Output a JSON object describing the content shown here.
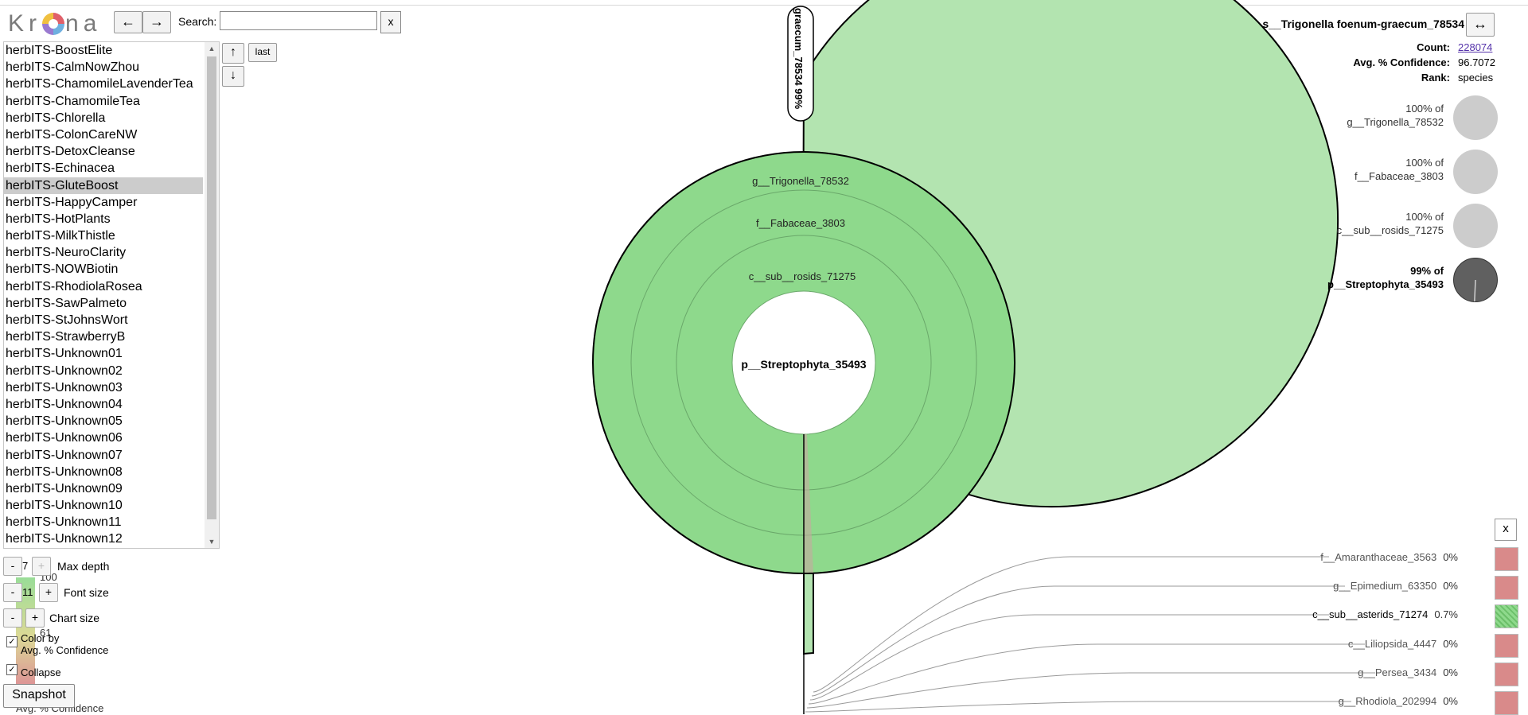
{
  "app": {
    "logo_letters": [
      "K",
      "r",
      "n",
      "a"
    ],
    "nav": {
      "back_label": "←",
      "forward_label": "→"
    },
    "search": {
      "label": "Search:",
      "value": "",
      "clear_label": "x"
    }
  },
  "datasets": {
    "items": [
      "herbITS-BoostElite",
      "herbITS-CalmNowZhou",
      "herbITS-ChamomileLavenderTea",
      "herbITS-ChamomileTea",
      "herbITS-Chlorella",
      "herbITS-ColonCareNW",
      "herbITS-DetoxCleanse",
      "herbITS-Echinacea",
      "herbITS-GluteBoost",
      "herbITS-HappyCamper",
      "herbITS-HotPlants",
      "herbITS-MilkThistle",
      "herbITS-NeuroClarity",
      "herbITS-NOWBiotin",
      "herbITS-RhodiolaRosea",
      "herbITS-SawPalmeto",
      "herbITS-StJohnsWort",
      "herbITS-StrawberryB",
      "herbITS-Unknown01",
      "herbITS-Unknown02",
      "herbITS-Unknown03",
      "herbITS-Unknown04",
      "herbITS-Unknown05",
      "herbITS-Unknown06",
      "herbITS-Unknown07",
      "herbITS-Unknown08",
      "herbITS-Unknown09",
      "herbITS-Unknown10",
      "herbITS-Unknown11",
      "herbITS-Unknown12"
    ],
    "selected_index": 8,
    "up_label": "↑",
    "down_label": "↓",
    "last_label": "last"
  },
  "options": {
    "max_depth": {
      "value": "7",
      "label": "Max depth",
      "minus": "-",
      "plus": "+"
    },
    "font_size": {
      "value": "11",
      "label": "Font size",
      "minus": "-",
      "plus": "+"
    },
    "chart_size": {
      "label": "Chart size",
      "minus": "-",
      "plus": "+"
    },
    "color_by": {
      "label_line1": "Color by",
      "label_line2": "Avg. % Confidence",
      "checked": true
    },
    "collapse": {
      "label": "Collapse",
      "checked": true
    },
    "snapshot_label": "Snapshot",
    "legend_fragments": [
      "100",
      "61",
      "Avg. % Confidence"
    ]
  },
  "details": {
    "title": "s__Trigonella foenum-graecum_78534",
    "swap_label": "↔",
    "count_key": "Count:",
    "count_value": "228074",
    "conf_key": "Avg. % Confidence:",
    "conf_value": "96.7072",
    "rank_key": "Rank:",
    "rank_value": "species",
    "ancestors": [
      {
        "line1": "100% of",
        "line2": "g__Trigonella_78532",
        "bold": false,
        "fraction": 1.0
      },
      {
        "line1": "100% of",
        "line2": "f__Fabaceae_3803",
        "bold": false,
        "fraction": 1.0
      },
      {
        "line1": "100% of",
        "line2": "c__sub__rosids_71275",
        "bold": false,
        "fraction": 1.0
      },
      {
        "line1": "99% of",
        "line2": "p__Streptophyta_35493",
        "bold": true,
        "fraction": 0.99
      }
    ]
  },
  "chart": {
    "center_label": "p__Streptophyta_35493",
    "ring_labels": [
      "g__Trigonella_78532",
      "f__Fabaceae_3803",
      "c__sub__rosids_71275"
    ],
    "outer_label": "graecum_78534  99%",
    "colors": {
      "outer": "#b3e4b0",
      "inner": "#8ed98c",
      "thin_wedge": "#d6a6a6"
    }
  },
  "hidden": {
    "close_label": "x",
    "items": [
      {
        "name": "f__Amaranthaceae_3563",
        "pct": "0%",
        "color": "#d98a8a",
        "pattern": false
      },
      {
        "name": "g__Epimedium_63350",
        "pct": "0%",
        "color": "#d98a8a",
        "pattern": false
      },
      {
        "name": "c__sub__asterids_71274",
        "pct": "0.7%",
        "color": "#8ed98c",
        "pattern": true
      },
      {
        "name": "c__Liliopsida_4447",
        "pct": "0%",
        "color": "#d98a8a",
        "pattern": false
      },
      {
        "name": "g__Persea_3434",
        "pct": "0%",
        "color": "#d98a8a",
        "pattern": false
      },
      {
        "name": "g__Rhodiola_202994",
        "pct": "0%",
        "color": "#d98a8a",
        "pattern": false
      }
    ]
  }
}
